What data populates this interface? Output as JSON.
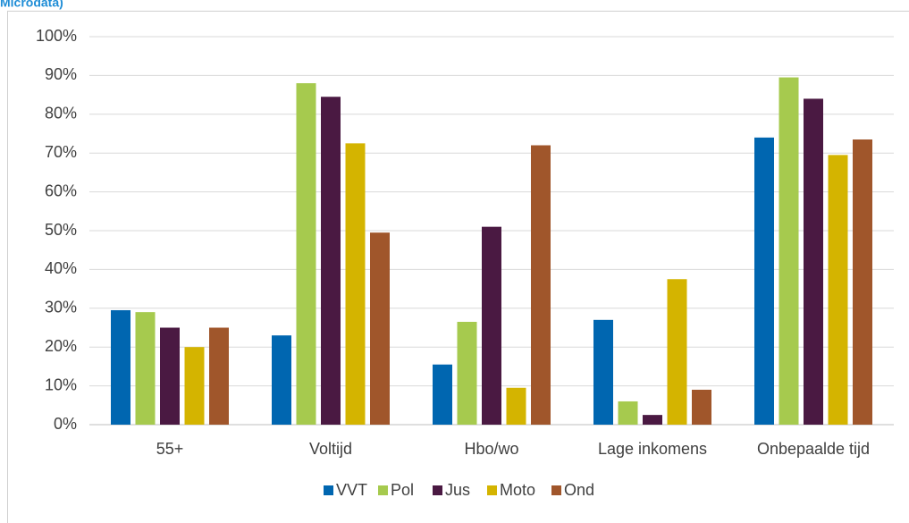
{
  "chart_data": {
    "type": "bar",
    "title": "Microdata)",
    "categories": [
      "55+",
      "Voltijd",
      "Hbo/wo",
      "Lage inkomens",
      "Onbepaalde tijd"
    ],
    "series": [
      {
        "name": "VVT",
        "color": "#0066b0",
        "values": [
          29.5,
          23,
          15.5,
          27,
          74
        ]
      },
      {
        "name": "Pol",
        "color": "#a6ca4e",
        "values": [
          29,
          88,
          26.5,
          6,
          89.5
        ]
      },
      {
        "name": "Jus",
        "color": "#4a1942",
        "values": [
          25,
          84.5,
          51,
          2.5,
          84
        ]
      },
      {
        "name": "Moto",
        "color": "#d4b400",
        "values": [
          20,
          72.5,
          9.5,
          37.5,
          69.5
        ]
      },
      {
        "name": "Ond",
        "color": "#a0562b",
        "values": [
          25,
          49.5,
          72,
          9,
          73.5
        ]
      }
    ],
    "ylim": [
      0,
      100
    ],
    "yticks": [
      {
        "value": 0,
        "label": "0%"
      },
      {
        "value": 10,
        "label": "10%"
      },
      {
        "value": 20,
        "label": "20%"
      },
      {
        "value": 30,
        "label": "30%"
      },
      {
        "value": 40,
        "label": "40%"
      },
      {
        "value": 50,
        "label": "50%"
      },
      {
        "value": 60,
        "label": "60%"
      },
      {
        "value": 70,
        "label": "70%"
      },
      {
        "value": 80,
        "label": "80%"
      },
      {
        "value": 90,
        "label": "90%"
      },
      {
        "value": 100,
        "label": "100%"
      }
    ],
    "grid": true,
    "legend": "bottom"
  }
}
